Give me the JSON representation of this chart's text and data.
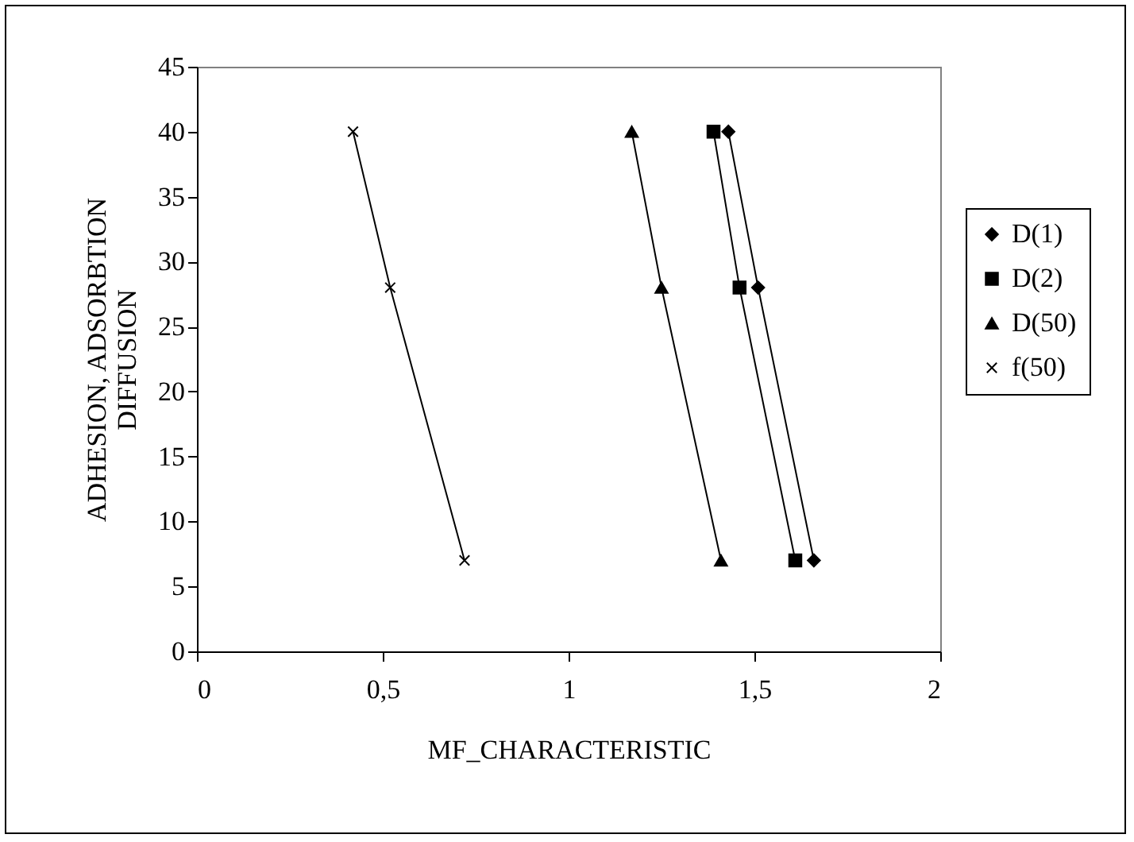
{
  "chart_data": {
    "type": "line",
    "xlabel": "MF_CHARACTERISTIC",
    "ylabel": "ADHESION, ADSORBTION\nDIFFUSION",
    "xlim": [
      0,
      2
    ],
    "xticks": [
      0,
      {
        "value": 0.5,
        "label": "0,5"
      },
      1,
      {
        "value": 1.5,
        "label": "1,5"
      },
      2
    ],
    "ylim": [
      0,
      45
    ],
    "yticks": [
      0,
      5,
      10,
      15,
      20,
      25,
      30,
      35,
      40,
      45
    ],
    "grid": false,
    "legend": "right",
    "line_style": "solid",
    "series": [
      {
        "name": "D(1)",
        "color": "#000000",
        "marker": "diamond",
        "x": [
          1.43,
          1.51,
          1.66
        ],
        "values": [
          40,
          28,
          7
        ]
      },
      {
        "name": "D(2)",
        "color": "#000000",
        "marker": "square",
        "x": [
          1.39,
          1.46,
          1.61
        ],
        "values": [
          40,
          28,
          7
        ]
      },
      {
        "name": "D(50)",
        "color": "#000000",
        "marker": "triangle",
        "x": [
          1.17,
          1.25,
          1.41
        ],
        "values": [
          40,
          28,
          7
        ]
      },
      {
        "name": "f(50)",
        "color": "#000000",
        "marker": "cross",
        "x": [
          0.42,
          0.52,
          0.72
        ],
        "values": [
          40,
          28,
          7
        ]
      }
    ]
  }
}
